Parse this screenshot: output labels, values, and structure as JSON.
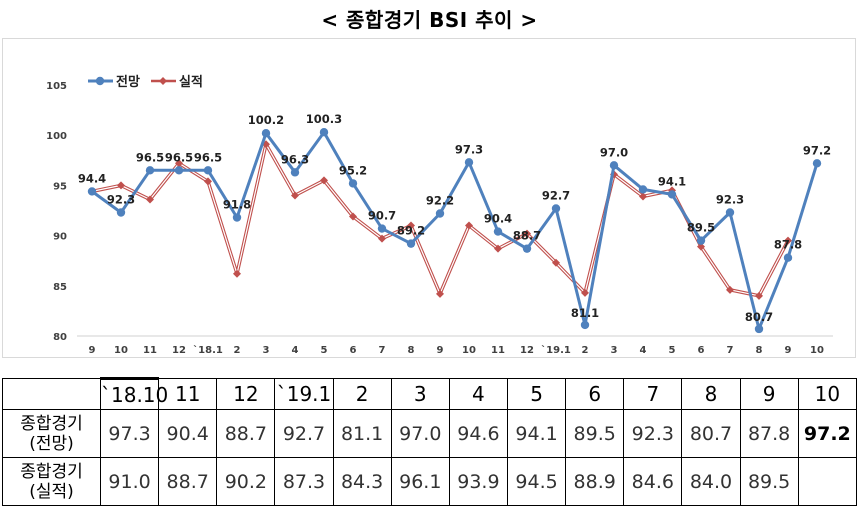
{
  "title": "< 종합경기 BSI 추이 >",
  "chart_data": {
    "type": "line",
    "categories": [
      "9",
      "10",
      "11",
      "12",
      "`18.1",
      "2",
      "3",
      "4",
      "5",
      "6",
      "7",
      "8",
      "9",
      "10",
      "11",
      "12",
      "`19.1",
      "2",
      "3",
      "4",
      "5",
      "6",
      "7",
      "8",
      "9",
      "10"
    ],
    "series": [
      {
        "name": "전망",
        "color": "#4f81bd",
        "values": [
          94.4,
          92.3,
          96.5,
          96.5,
          96.5,
          91.8,
          100.2,
          96.3,
          100.3,
          95.2,
          90.7,
          89.2,
          92.2,
          97.3,
          90.4,
          88.7,
          92.7,
          81.1,
          97.0,
          94.6,
          94.1,
          89.5,
          92.3,
          80.7,
          87.8,
          97.2
        ],
        "labels": [
          "94.4",
          "92.3",
          "96.5",
          "96.5",
          "96.5",
          "91.8",
          "100.2",
          "96.3",
          "100.3",
          "95.2",
          "90.7",
          "89.2",
          "92.2",
          "97.3",
          "90.4",
          "88.7",
          "92.7",
          "81.1",
          "97.0",
          "",
          "94.1",
          "89.5",
          "92.3",
          "80.7",
          "87.8",
          "97.2"
        ]
      },
      {
        "name": "실적",
        "color": "#c0504d",
        "values": [
          94.4,
          95.0,
          93.6,
          97.2,
          95.4,
          86.2,
          99.1,
          94.0,
          95.5,
          91.9,
          89.7,
          91.0,
          84.2,
          91.0,
          88.7,
          90.2,
          87.3,
          84.3,
          96.1,
          93.9,
          94.5,
          88.9,
          84.6,
          84.0,
          89.5,
          null
        ]
      }
    ],
    "yticks": [
      80,
      85,
      90,
      95,
      100,
      105
    ],
    "ylim": [
      80,
      105
    ],
    "legend_position": "top-left",
    "grid": false
  },
  "table": {
    "header": [
      "",
      "`18.10",
      "11",
      "12",
      "`19.1",
      "2",
      "3",
      "4",
      "5",
      "6",
      "7",
      "8",
      "9",
      "10"
    ],
    "rows": [
      {
        "label_line1": "종합경기",
        "label_line2": "(전망)",
        "values": [
          "97.3",
          "90.4",
          "88.7",
          "92.7",
          "81.1",
          "97.0",
          "94.6",
          "94.1",
          "89.5",
          "92.3",
          "80.7",
          "87.8",
          "97.2"
        ]
      },
      {
        "label_line1": "종합경기",
        "label_line2": "(실적)",
        "values": [
          "91.0",
          "88.7",
          "90.2",
          "87.3",
          "84.3",
          "96.1",
          "93.9",
          "94.5",
          "88.9",
          "84.6",
          "84.0",
          "89.5",
          ""
        ]
      }
    ]
  }
}
